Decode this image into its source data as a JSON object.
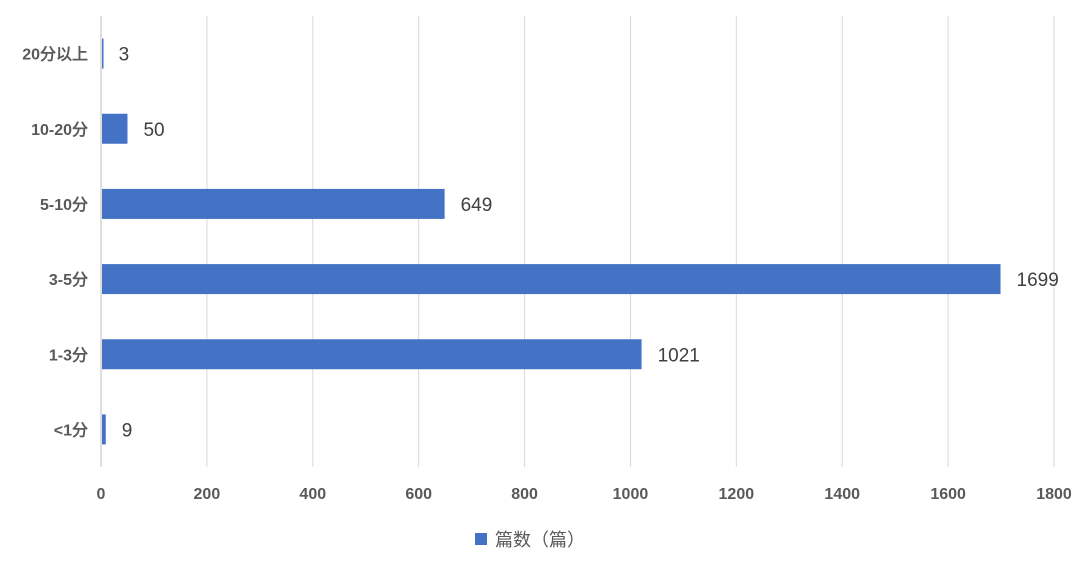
{
  "chart_data": {
    "type": "bar",
    "orientation": "horizontal",
    "categories": [
      "<1分",
      "1-3分",
      "3-5分",
      "5-10分",
      "10-20分",
      "20分以上"
    ],
    "series": [
      {
        "name": "篇数（篇）",
        "values": [
          9,
          1021,
          1699,
          649,
          50,
          3
        ],
        "color": "#4472C4"
      }
    ],
    "xlim": [
      0,
      1800
    ],
    "xticks": [
      0,
      200,
      400,
      600,
      800,
      1000,
      1200,
      1400,
      1600,
      1800
    ],
    "grid": true,
    "legend": "bottom",
    "data_labels": true
  }
}
